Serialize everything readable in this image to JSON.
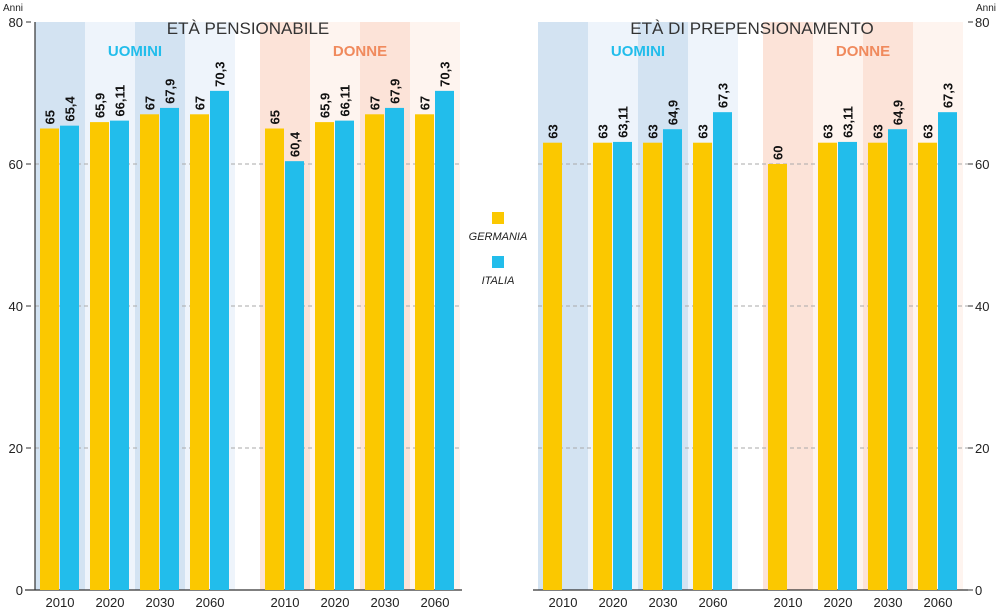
{
  "chart_data": {
    "type": "bar",
    "y_unit_label": "Anni",
    "ylim": [
      0,
      80
    ],
    "yticks": [
      0,
      20,
      40,
      60,
      80
    ],
    "grid": "dashed at 20, 40, 60",
    "legend": {
      "placement": "center",
      "entries": [
        {
          "name": "GERMANIA",
          "color": "#FBC800"
        },
        {
          "name": "ITALIA",
          "color": "#22BDEB"
        }
      ]
    },
    "colors": {
      "germania": "#FBC800",
      "italia": "#22BDEB",
      "uomini_label": "#22BDEB",
      "donne_label": "#F08A5D",
      "uomini_band_dark": "#D3E3F2",
      "uomini_band_light": "#EEF4FB",
      "donne_band_dark": "#FCE3D8",
      "donne_band_light": "#FEF4EF"
    },
    "panels": [
      {
        "title": "ETÀ PENSIONABILE",
        "groups": [
          {
            "label": "UOMINI",
            "categories": [
              "2010",
              "2020",
              "2030",
              "2060"
            ],
            "series": [
              {
                "name": "GERMANIA",
                "values": [
                  65,
                  65.9,
                  67,
                  67
                ],
                "labels": [
                  "65",
                  "65,9",
                  "67",
                  "67"
                ]
              },
              {
                "name": "ITALIA",
                "values": [
                  65.4,
                  66.11,
                  67.9,
                  70.3
                ],
                "labels": [
                  "65,4",
                  "66,11",
                  "67,9",
                  "70,3"
                ]
              }
            ]
          },
          {
            "label": "DONNE",
            "categories": [
              "2010",
              "2020",
              "2030",
              "2060"
            ],
            "series": [
              {
                "name": "GERMANIA",
                "values": [
                  65,
                  65.9,
                  67,
                  67
                ],
                "labels": [
                  "65",
                  "65,9",
                  "67",
                  "67"
                ]
              },
              {
                "name": "ITALIA",
                "values": [
                  60.4,
                  66.11,
                  67.9,
                  70.3
                ],
                "labels": [
                  "60,4",
                  "66,11",
                  "67,9",
                  "70,3"
                ]
              }
            ]
          }
        ]
      },
      {
        "title": "ETÀ DI PREPENSIONAMENTO",
        "groups": [
          {
            "label": "UOMINI",
            "categories": [
              "2010",
              "2020",
              "2030",
              "2060"
            ],
            "series": [
              {
                "name": "GERMANIA",
                "values": [
                  63,
                  63,
                  63,
                  63
                ],
                "labels": [
                  "63",
                  "63",
                  "63",
                  "63"
                ]
              },
              {
                "name": "ITALIA",
                "values": [
                  null,
                  63.11,
                  64.9,
                  67.3
                ],
                "labels": [
                  "",
                  "63,11",
                  "64,9",
                  "67,3"
                ]
              }
            ]
          },
          {
            "label": "DONNE",
            "categories": [
              "2010",
              "2020",
              "2030",
              "2060"
            ],
            "series": [
              {
                "name": "GERMANIA",
                "values": [
                  60,
                  63,
                  63,
                  63
                ],
                "labels": [
                  "60",
                  "63",
                  "63",
                  "63"
                ]
              },
              {
                "name": "ITALIA",
                "values": [
                  null,
                  63.11,
                  64.9,
                  67.3
                ],
                "labels": [
                  "",
                  "63,11",
                  "64,9",
                  "67,3"
                ]
              }
            ]
          }
        ]
      }
    ]
  }
}
